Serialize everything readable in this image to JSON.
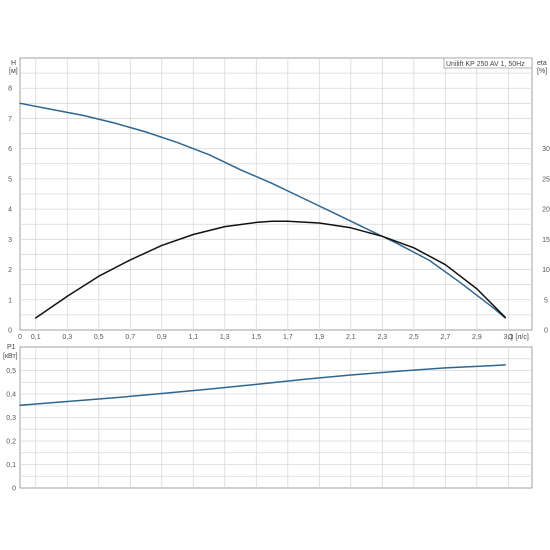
{
  "chart_data": [
    {
      "type": "line",
      "title": "Unilift KP 250 AV 1, 50Hz",
      "xlabel": "Q [л/с]",
      "ylabel": "H [м]",
      "ylabel_unit": "[м]",
      "ylabel_name": "H",
      "y2label_name": "eta",
      "y2label_unit": "[%]",
      "xlim": [
        0,
        3.25
      ],
      "ylim": [
        0,
        9
      ],
      "y2lim": [
        0,
        45
      ],
      "x_ticks": [
        "0",
        "0,1",
        "0,3",
        "0,5",
        "0,7",
        "0,9",
        "1,1",
        "1,3",
        "1,5",
        "1,7",
        "1,9",
        "2,1",
        "2,3",
        "2,5",
        "2,7",
        "2,9",
        "3,1"
      ],
      "y_ticks": [
        "0",
        "1",
        "2",
        "3",
        "4",
        "5",
        "6",
        "7",
        "8"
      ],
      "y2_ticks": [
        "0",
        "5",
        "10",
        "15",
        "20",
        "25",
        "30"
      ],
      "grid": true,
      "series": [
        {
          "axis": "left",
          "color": "#2f6690",
          "x": [
            0.0,
            0.2,
            0.4,
            0.6,
            0.8,
            1.0,
            1.2,
            1.4,
            1.6,
            1.8,
            2.0,
            2.2,
            2.4,
            2.6,
            2.8,
            3.0,
            3.08
          ],
          "values": [
            7.5,
            7.3,
            7.1,
            6.85,
            6.55,
            6.2,
            5.8,
            5.3,
            4.85,
            4.35,
            3.85,
            3.35,
            2.85,
            2.3,
            1.55,
            0.75,
            0.4
          ]
        },
        {
          "axis": "right",
          "color": "#111111",
          "x": [
            0.1,
            0.3,
            0.5,
            0.7,
            0.9,
            1.1,
            1.3,
            1.5,
            1.6,
            1.7,
            1.9,
            2.1,
            2.3,
            2.5,
            2.7,
            2.9,
            3.08
          ],
          "values": [
            2.0,
            5.6,
            8.9,
            11.6,
            14.0,
            15.8,
            17.1,
            17.8,
            18.0,
            18.0,
            17.7,
            16.9,
            15.5,
            13.6,
            10.8,
            6.8,
            2.1
          ]
        }
      ]
    },
    {
      "type": "line",
      "title": "",
      "xlabel": "",
      "ylabel": "P1 [кВт]",
      "ylabel_name": "P1",
      "ylabel_unit": "[кВт]",
      "xlim": [
        0,
        3.25
      ],
      "ylim": [
        0,
        0.6
      ],
      "y_ticks": [
        "0",
        "0,1",
        "0,2",
        "0,3",
        "0,4",
        "0,5"
      ],
      "grid": true,
      "series": [
        {
          "color": "#2f6690",
          "x": [
            0.0,
            0.3,
            0.6,
            0.9,
            1.2,
            1.5,
            1.8,
            2.1,
            2.4,
            2.7,
            3.0,
            3.08
          ],
          "values": [
            0.352,
            0.368,
            0.384,
            0.402,
            0.421,
            0.441,
            0.462,
            0.481,
            0.497,
            0.511,
            0.521,
            0.524
          ]
        }
      ]
    }
  ]
}
